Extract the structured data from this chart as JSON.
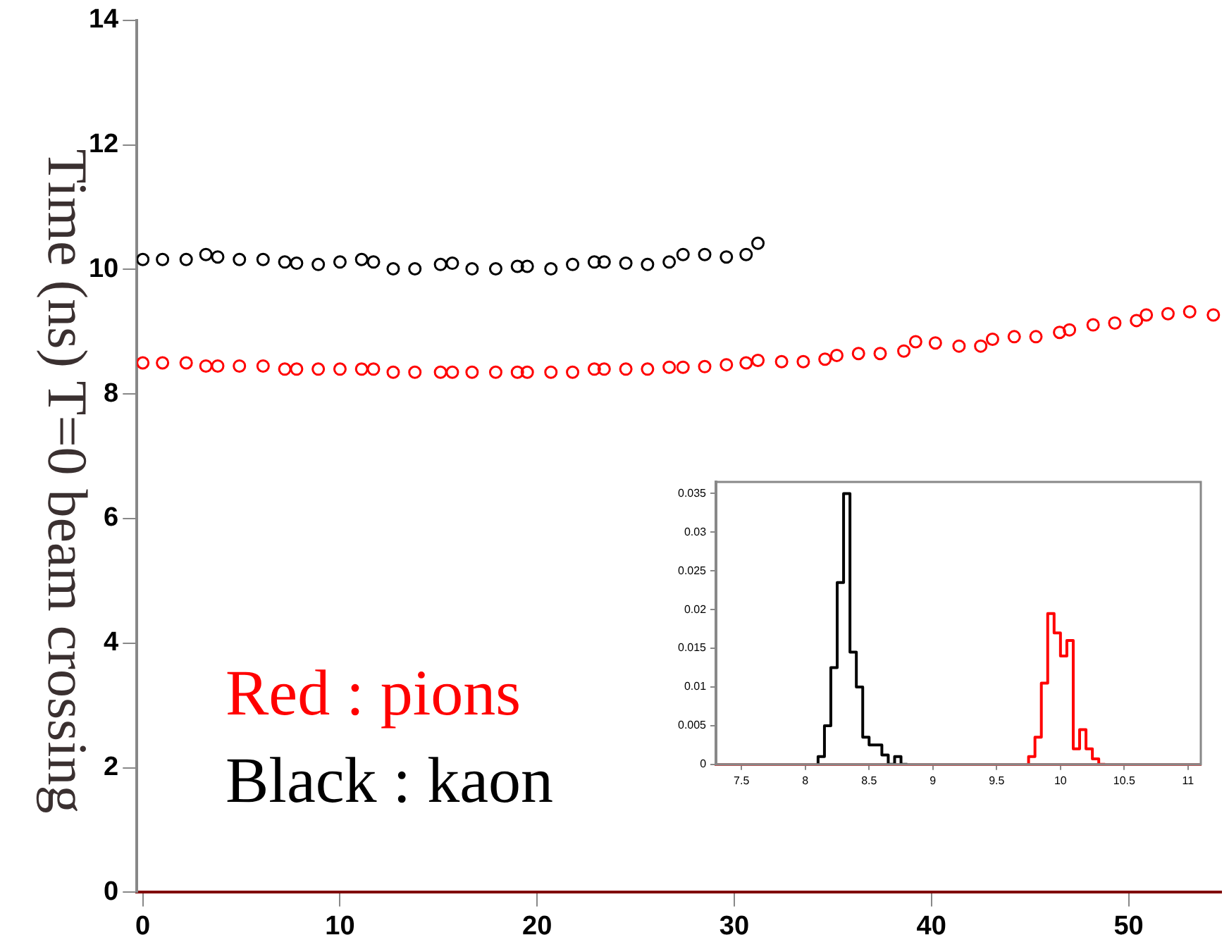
{
  "chart_data": [
    {
      "type": "scatter",
      "ylabel": "Time (ns)  T=0  beam crossing",
      "marker": "circle",
      "grid": false,
      "legend": false,
      "xlim": [
        -0.3,
        54.7
      ],
      "ylim": [
        0,
        14
      ],
      "xticks": [
        0,
        10,
        20,
        30,
        40,
        50
      ],
      "yticks": [
        0,
        2,
        4,
        6,
        8,
        10,
        12,
        14
      ],
      "annotations": [
        "Red : pions",
        "Black : kaon"
      ],
      "series": [
        {
          "color": "#ff0000",
          "x": [
            0,
            1,
            2.2,
            3.2,
            3.8,
            4.9,
            6.1,
            7.2,
            7.8,
            8.9,
            10,
            11.1,
            11.7,
            12.7,
            13.8,
            15.1,
            15.7,
            16.7,
            17.9,
            19,
            19.5,
            20.7,
            21.8,
            22.9,
            23.4,
            24.5,
            25.6,
            26.7,
            27.4,
            28.5,
            29.6,
            30.6,
            31.2,
            32.4,
            33.5,
            34.6,
            35.2,
            36.3,
            37.4,
            38.6,
            39.2,
            40.2,
            41.4,
            42.5,
            43.1,
            44.2,
            45.3,
            46.5,
            47,
            48.2,
            49.3,
            50.4,
            50.9,
            52,
            53.1,
            54.3
          ],
          "values": [
            8.5,
            8.5,
            8.5,
            8.45,
            8.45,
            8.45,
            8.45,
            8.4,
            8.4,
            8.4,
            8.4,
            8.4,
            8.4,
            8.35,
            8.35,
            8.35,
            8.35,
            8.35,
            8.35,
            8.35,
            8.35,
            8.35,
            8.35,
            8.4,
            8.4,
            8.4,
            8.4,
            8.43,
            8.43,
            8.44,
            8.47,
            8.5,
            8.54,
            8.52,
            8.52,
            8.56,
            8.62,
            8.65,
            8.65,
            8.69,
            8.84,
            8.82,
            8.77,
            8.77,
            8.88,
            8.92,
            8.92,
            8.99,
            9.03,
            9.11,
            9.14,
            9.18,
            9.27,
            9.29,
            9.32,
            9.27
          ]
        },
        {
          "color": "#000000",
          "x": [
            0,
            1,
            2.2,
            3.2,
            3.8,
            4.9,
            6.1,
            7.2,
            7.8,
            8.9,
            10,
            11.1,
            11.7,
            12.7,
            13.8,
            15.1,
            15.7,
            16.7,
            17.9,
            19,
            19.5,
            20.7,
            21.8,
            22.9,
            23.4,
            24.5,
            25.6,
            26.7,
            27.4,
            28.5,
            29.6,
            30.6,
            31.2
          ],
          "values": [
            10.16,
            10.16,
            10.16,
            10.24,
            10.2,
            10.16,
            10.16,
            10.12,
            10.1,
            10.08,
            10.12,
            10.16,
            10.12,
            10.01,
            10.01,
            10.08,
            10.1,
            10.01,
            10.01,
            10.05,
            10.05,
            10.01,
            10.08,
            10.12,
            10.12,
            10.1,
            10.08,
            10.12,
            10.24,
            10.24,
            10.2,
            10.24,
            10.42
          ]
        }
      ]
    },
    {
      "type": "step",
      "xlim": [
        7.3,
        11.1
      ],
      "ylim": [
        0,
        0.0365
      ],
      "xticks": [
        7.5,
        8,
        8.5,
        9,
        9.5,
        10,
        10.5,
        11
      ],
      "yticks": [
        0,
        0.005,
        0.01,
        0.015,
        0.02,
        0.025,
        0.03,
        0.035
      ],
      "grid": false,
      "legend": false,
      "series": [
        {
          "color": "#000000",
          "x": [
            8.1,
            8.15,
            8.2,
            8.25,
            8.3,
            8.35,
            8.4,
            8.45,
            8.5,
            8.55,
            8.6,
            8.65,
            8.7,
            8.75,
            8.8
          ],
          "values": [
            0,
            0.001,
            0.005,
            0.0125,
            0.0235,
            0.035,
            0.0145,
            0.01,
            0.0035,
            0.0025,
            0.0025,
            0.0012,
            0,
            0.001,
            0
          ]
        },
        {
          "color": "#ff0000",
          "x": [
            9.75,
            9.8,
            9.85,
            9.9,
            9.95,
            10,
            10.05,
            10.1,
            10.15,
            10.2,
            10.25,
            10.3,
            10.35
          ],
          "values": [
            0,
            0.001,
            0.0035,
            0.0105,
            0.0195,
            0.017,
            0.014,
            0.016,
            0.002,
            0.0045,
            0.002,
            0.0007,
            0
          ]
        }
      ]
    }
  ]
}
